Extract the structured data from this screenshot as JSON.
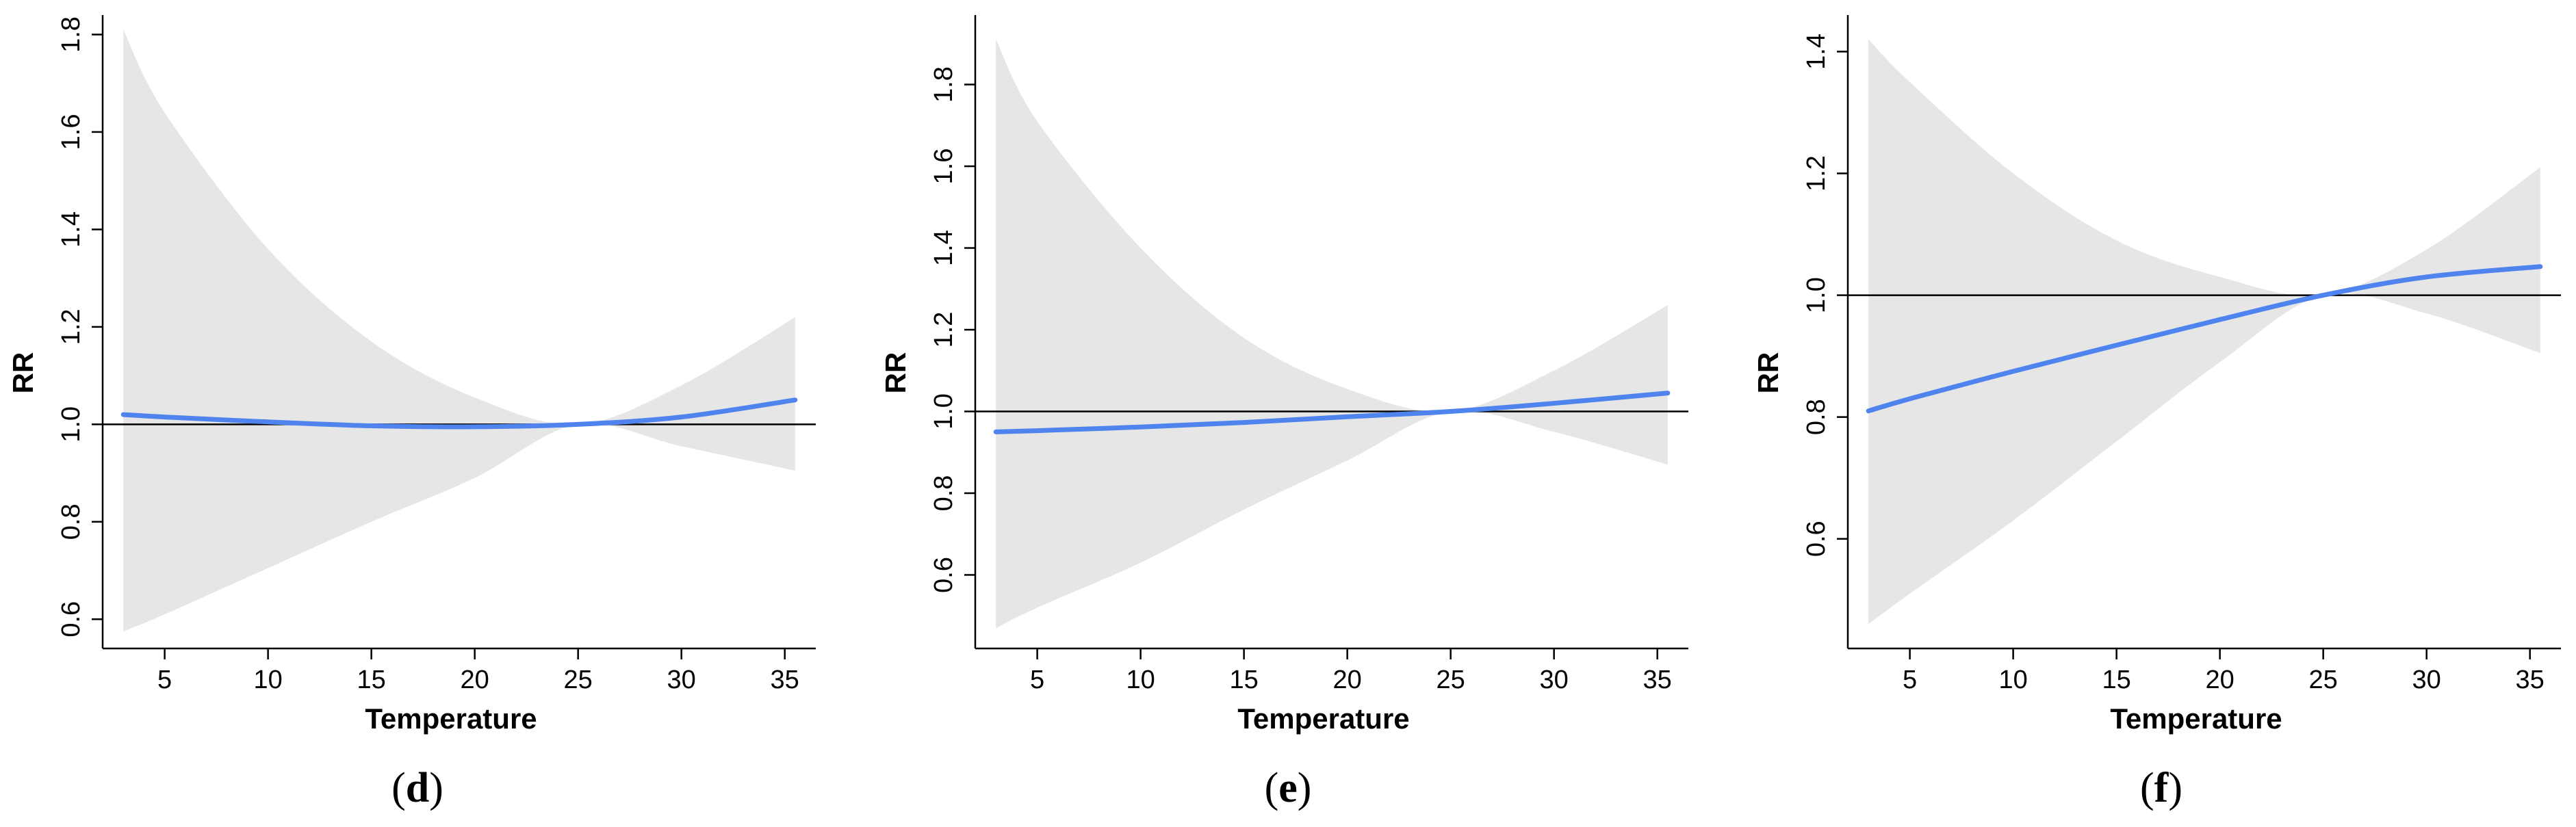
{
  "chart_data": [
    {
      "type": "line",
      "panel_label": "d",
      "xlabel": "Temperature",
      "ylabel": "RR",
      "xlim": [
        2,
        36.5
      ],
      "ylim": [
        0.54,
        1.84
      ],
      "x_ticks": [
        5,
        10,
        15,
        20,
        25,
        30,
        35
      ],
      "y_ticks": [
        0.6,
        0.8,
        1.0,
        1.2,
        1.4,
        1.6,
        1.8
      ],
      "y_tick_labels": [
        "0.6",
        "0.8",
        "1.0",
        "1.2",
        "1.4",
        "1.6",
        "1.8"
      ],
      "reference_line": 1.0,
      "x": [
        3,
        5,
        10,
        15,
        20,
        25,
        30,
        35.5
      ],
      "series": [
        {
          "name": "",
          "values": [
            1.02,
            1.015,
            1.005,
            0.997,
            0.995,
            1.0,
            1.015,
            1.05
          ]
        }
      ],
      "ci_upper": [
        1.81,
        1.64,
        1.36,
        1.17,
        1.055,
        1.0,
        1.08,
        1.22
      ],
      "ci_lower": [
        0.575,
        0.61,
        0.705,
        0.8,
        0.89,
        1.0,
        0.955,
        0.905
      ],
      "colors": {
        "line": "#4f84ee",
        "band": "#e6e6e6",
        "reference": "#000000"
      }
    },
    {
      "type": "line",
      "panel_label": "e",
      "xlabel": "Temperature",
      "ylabel": "RR",
      "xlim": [
        2,
        36.5
      ],
      "ylim": [
        0.42,
        1.97
      ],
      "x_ticks": [
        5,
        10,
        15,
        20,
        25,
        30,
        35
      ],
      "y_ticks": [
        0.6,
        0.8,
        1.0,
        1.2,
        1.4,
        1.6,
        1.8
      ],
      "y_tick_labels": [
        "0.6",
        "0.8",
        "1.0",
        "1.2",
        "1.4",
        "1.6",
        "1.8"
      ],
      "reference_line": 1.0,
      "x": [
        3,
        5,
        10,
        15,
        20,
        25,
        30,
        35.5
      ],
      "series": [
        {
          "name": "",
          "values": [
            0.95,
            0.953,
            0.962,
            0.973,
            0.987,
            1.0,
            1.02,
            1.045
          ]
        }
      ],
      "ci_upper": [
        1.91,
        1.71,
        1.4,
        1.18,
        1.055,
        1.0,
        1.1,
        1.26
      ],
      "ci_lower": [
        0.47,
        0.52,
        0.63,
        0.76,
        0.88,
        1.0,
        0.95,
        0.87
      ],
      "colors": {
        "line": "#4f84ee",
        "band": "#e6e6e6",
        "reference": "#000000"
      }
    },
    {
      "type": "line",
      "panel_label": "f",
      "xlabel": "Temperature",
      "ylabel": "RR",
      "xlim": [
        2,
        36.5
      ],
      "ylim": [
        0.42,
        1.46
      ],
      "x_ticks": [
        5,
        10,
        15,
        20,
        25,
        30,
        35
      ],
      "y_ticks": [
        0.6,
        0.8,
        1.0,
        1.2,
        1.4
      ],
      "y_tick_labels": [
        "0.6",
        "0.8",
        "1.0",
        "1.2",
        "1.4"
      ],
      "reference_line": 1.0,
      "x": [
        3,
        5,
        10,
        15,
        20,
        25,
        30,
        35.5
      ],
      "series": [
        {
          "name": "",
          "values": [
            0.81,
            0.83,
            0.875,
            0.918,
            0.96,
            1.0,
            1.03,
            1.047
          ]
        }
      ],
      "ci_upper": [
        1.42,
        1.35,
        1.2,
        1.09,
        1.03,
        1.0,
        1.075,
        1.21
      ],
      "ci_lower": [
        0.46,
        0.51,
        0.63,
        0.76,
        0.89,
        1.0,
        0.97,
        0.905
      ],
      "colors": {
        "line": "#4f84ee",
        "band": "#e6e6e6",
        "reference": "#000000"
      }
    }
  ]
}
